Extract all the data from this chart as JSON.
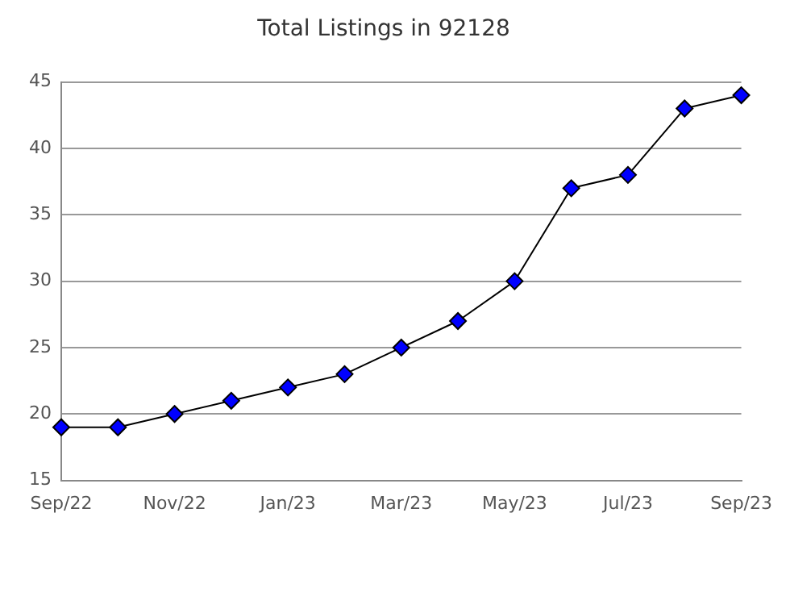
{
  "chart_data": {
    "type": "line",
    "title": "Total Listings in 92128",
    "categories": [
      "Sep/22",
      null,
      "Nov/22",
      null,
      "Jan/23",
      null,
      "Mar/23",
      null,
      "May/23",
      null,
      "Jul/23",
      null,
      "Sep/23"
    ],
    "series": [
      {
        "color": "#0000ff",
        "values": [
          19,
          19,
          20,
          21,
          22,
          23,
          25,
          27,
          30,
          37,
          38,
          43,
          44
        ]
      }
    ],
    "ylim": [
      15,
      45
    ],
    "yticks": [
      15,
      20,
      25,
      30,
      35,
      40,
      45
    ],
    "grid": "y",
    "marker": "diamond",
    "line_style": "solid",
    "legend": false
  }
}
